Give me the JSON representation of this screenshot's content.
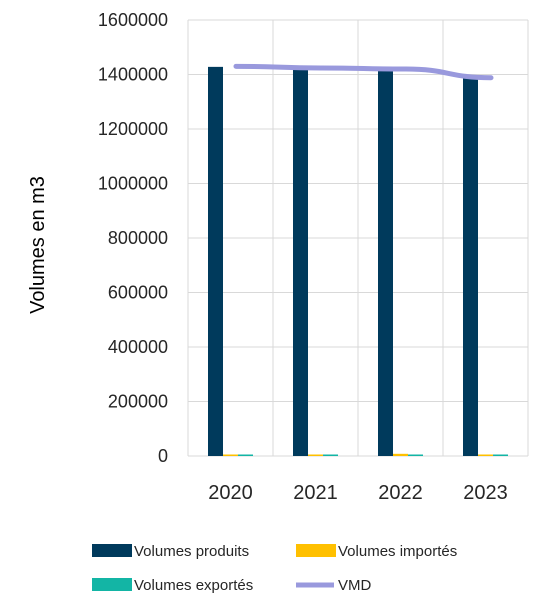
{
  "chart_data": {
    "type": "bar",
    "categories": [
      "2020",
      "2021",
      "2022",
      "2023"
    ],
    "series": [
      {
        "name": "Volumes produits",
        "kind": "bar",
        "color": "#003a5c",
        "values": [
          1428000,
          1422000,
          1418000,
          1388000
        ]
      },
      {
        "name": "Volumes importés",
        "kind": "bar",
        "color": "#ffc000",
        "values": [
          2000,
          1500,
          8000,
          3000
        ]
      },
      {
        "name": "Volumes exportés",
        "kind": "bar",
        "color": "#13b5a5",
        "values": [
          500,
          500,
          500,
          500
        ]
      },
      {
        "name": "VMD",
        "kind": "line",
        "color": "#9999dd",
        "values": [
          1430000,
          1424000,
          1420000,
          1388000
        ]
      }
    ],
    "ylabel": "Volumes en m3",
    "xlabel": "",
    "ylim": [
      0,
      1600000
    ],
    "yticks": [
      "0",
      "200000",
      "400000",
      "600000",
      "800000",
      "1000000",
      "1200000",
      "1400000",
      "1600000"
    ],
    "grid": true,
    "legend_position": "bottom"
  }
}
